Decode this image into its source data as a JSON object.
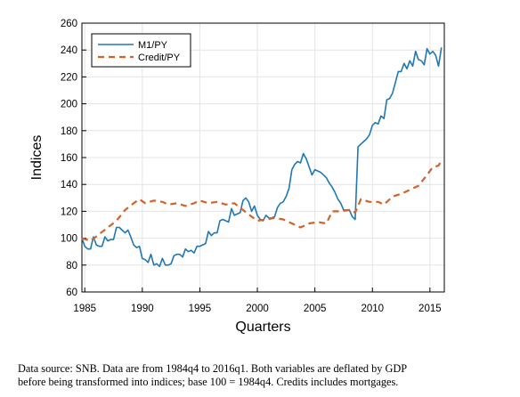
{
  "chart_data": {
    "type": "line",
    "title": "",
    "xlabel": "Quarters",
    "ylabel": "Indices",
    "xlim": [
      1984.75,
      2016.25
    ],
    "ylim": [
      60,
      260
    ],
    "xticks": [
      "1985",
      "1990",
      "1995",
      "2000",
      "2005",
      "2010",
      "2015"
    ],
    "yticks": [
      "60",
      "80",
      "100",
      "120",
      "140",
      "160",
      "180",
      "200",
      "220",
      "240",
      "260"
    ],
    "grid": true,
    "legend": "top-left",
    "series": [
      {
        "name": "M1/PY",
        "color": "#1f77b4",
        "style": "solid",
        "points": [
          [
            1984.75,
            100
          ],
          [
            1985.0,
            94
          ],
          [
            1985.25,
            92
          ],
          [
            1985.5,
            92
          ],
          [
            1985.75,
            101
          ],
          [
            1986.0,
            95
          ],
          [
            1986.25,
            94
          ],
          [
            1986.5,
            94
          ],
          [
            1986.75,
            101
          ],
          [
            1987.0,
            98
          ],
          [
            1987.25,
            99
          ],
          [
            1987.5,
            99
          ],
          [
            1987.75,
            108
          ],
          [
            1988.0,
            108
          ],
          [
            1988.25,
            106
          ],
          [
            1988.5,
            104
          ],
          [
            1988.75,
            106
          ],
          [
            1989.0,
            101
          ],
          [
            1989.25,
            95
          ],
          [
            1989.5,
            93
          ],
          [
            1989.75,
            94
          ],
          [
            1990.0,
            85
          ],
          [
            1990.25,
            84
          ],
          [
            1990.5,
            82
          ],
          [
            1990.75,
            88
          ],
          [
            1991.0,
            80
          ],
          [
            1991.25,
            81
          ],
          [
            1991.5,
            79
          ],
          [
            1991.75,
            85
          ],
          [
            1992.0,
            80
          ],
          [
            1992.25,
            80
          ],
          [
            1992.5,
            81
          ],
          [
            1992.75,
            87
          ],
          [
            1993.0,
            88
          ],
          [
            1993.25,
            88
          ],
          [
            1993.5,
            86
          ],
          [
            1993.75,
            92
          ],
          [
            1994.0,
            90
          ],
          [
            1994.25,
            91
          ],
          [
            1994.5,
            89
          ],
          [
            1994.75,
            94
          ],
          [
            1995.0,
            94
          ],
          [
            1995.25,
            95
          ],
          [
            1995.5,
            96
          ],
          [
            1995.75,
            105
          ],
          [
            1996.0,
            102
          ],
          [
            1996.25,
            104
          ],
          [
            1996.5,
            104
          ],
          [
            1996.75,
            113
          ],
          [
            1997.0,
            114
          ],
          [
            1997.25,
            113
          ],
          [
            1997.5,
            112
          ],
          [
            1997.75,
            122
          ],
          [
            1998.0,
            117
          ],
          [
            1998.25,
            118
          ],
          [
            1998.5,
            119
          ],
          [
            1998.75,
            128
          ],
          [
            1999.0,
            130
          ],
          [
            1999.25,
            127
          ],
          [
            1999.5,
            120
          ],
          [
            1999.75,
            124
          ],
          [
            2000.0,
            117
          ],
          [
            2000.25,
            114
          ],
          [
            2000.5,
            113
          ],
          [
            2000.75,
            117
          ],
          [
            2001.0,
            115
          ],
          [
            2001.25,
            115
          ],
          [
            2001.5,
            116
          ],
          [
            2001.75,
            123
          ],
          [
            2002.0,
            126
          ],
          [
            2002.25,
            127
          ],
          [
            2002.5,
            131
          ],
          [
            2002.75,
            137
          ],
          [
            2003.0,
            151
          ],
          [
            2003.25,
            155
          ],
          [
            2003.5,
            157
          ],
          [
            2003.75,
            156
          ],
          [
            2004.0,
            163
          ],
          [
            2004.25,
            159
          ],
          [
            2004.5,
            153
          ],
          [
            2004.75,
            147
          ],
          [
            2005.0,
            151
          ],
          [
            2005.25,
            150
          ],
          [
            2005.5,
            149
          ],
          [
            2005.75,
            147
          ],
          [
            2006.0,
            145
          ],
          [
            2006.25,
            141
          ],
          [
            2006.5,
            138
          ],
          [
            2006.75,
            134
          ],
          [
            2007.0,
            129
          ],
          [
            2007.25,
            126
          ],
          [
            2007.5,
            121
          ],
          [
            2007.75,
            121
          ],
          [
            2008.0,
            121
          ],
          [
            2008.25,
            116
          ],
          [
            2008.5,
            114
          ],
          [
            2008.75,
            168
          ],
          [
            2009.0,
            170
          ],
          [
            2009.25,
            172
          ],
          [
            2009.5,
            174
          ],
          [
            2009.75,
            177
          ],
          [
            2010.0,
            184
          ],
          [
            2010.25,
            186
          ],
          [
            2010.5,
            185
          ],
          [
            2010.75,
            191
          ],
          [
            2011.0,
            189
          ],
          [
            2011.25,
            203
          ],
          [
            2011.5,
            204
          ],
          [
            2011.75,
            208
          ],
          [
            2012.0,
            216
          ],
          [
            2012.25,
            224
          ],
          [
            2012.5,
            224
          ],
          [
            2012.75,
            230
          ],
          [
            2013.0,
            226
          ],
          [
            2013.25,
            232
          ],
          [
            2013.5,
            228
          ],
          [
            2013.75,
            239
          ],
          [
            2014.0,
            233
          ],
          [
            2014.25,
            232
          ],
          [
            2014.5,
            229
          ],
          [
            2014.75,
            241
          ],
          [
            2015.0,
            237
          ],
          [
            2015.25,
            239
          ],
          [
            2015.5,
            236
          ],
          [
            2015.75,
            228
          ],
          [
            2016.0,
            242
          ]
        ]
      },
      {
        "name": "Credit/PY",
        "color": "#d2622b",
        "style": "dashed",
        "points": [
          [
            1984.75,
            100
          ],
          [
            1985.5,
            98
          ],
          [
            1986.25,
            103
          ],
          [
            1987.0,
            108
          ],
          [
            1987.75,
            113
          ],
          [
            1988.5,
            121
          ],
          [
            1989.25,
            126
          ],
          [
            1989.75,
            129
          ],
          [
            1990.25,
            126
          ],
          [
            1991.0,
            128
          ],
          [
            1991.75,
            127
          ],
          [
            1992.25,
            125
          ],
          [
            1993.0,
            126
          ],
          [
            1993.75,
            124
          ],
          [
            1994.5,
            126
          ],
          [
            1995.0,
            128
          ],
          [
            1995.75,
            126
          ],
          [
            1996.5,
            127
          ],
          [
            1997.25,
            125
          ],
          [
            1998.0,
            126
          ],
          [
            1998.75,
            121
          ],
          [
            1999.5,
            116
          ],
          [
            2000.0,
            113
          ],
          [
            2000.75,
            114
          ],
          [
            2001.5,
            115
          ],
          [
            2002.25,
            114
          ],
          [
            2003.0,
            111
          ],
          [
            2003.75,
            108
          ],
          [
            2004.5,
            111
          ],
          [
            2005.25,
            112
          ],
          [
            2006.0,
            111
          ],
          [
            2006.5,
            120
          ],
          [
            2007.25,
            120
          ],
          [
            2008.0,
            121
          ],
          [
            2008.5,
            119
          ],
          [
            2009.0,
            129
          ],
          [
            2009.75,
            127
          ],
          [
            2010.5,
            127
          ],
          [
            2011.0,
            125
          ],
          [
            2011.75,
            131
          ],
          [
            2012.5,
            133
          ],
          [
            2013.25,
            136
          ],
          [
            2014.0,
            139
          ],
          [
            2014.75,
            147
          ],
          [
            2015.25,
            153
          ],
          [
            2015.75,
            154
          ],
          [
            2016.0,
            158
          ]
        ]
      }
    ],
    "caption_lines": [
      "Data source: SNB. Data are from 1984q4 to 2016q1. Both variables are deflated by GDP",
      "before being transformed into indices; base 100 = 1984q4. Credits includes mortgages."
    ]
  }
}
